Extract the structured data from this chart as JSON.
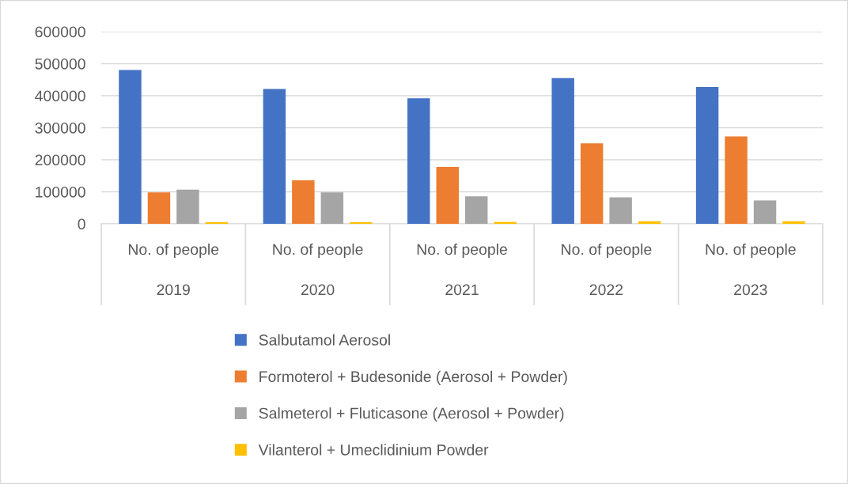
{
  "chart_data": {
    "type": "bar",
    "categories": [
      "No. of people\n2019",
      "No. of people\n2020",
      "No. of people\n2021",
      "No. of people\n2022",
      "No. of people\n2023"
    ],
    "series": [
      {
        "name": "Salbutamol Aerosol",
        "color": "#4472c4",
        "values": [
          480000,
          421000,
          392000,
          455000,
          427000
        ]
      },
      {
        "name": "Formoterol + Budesonide (Aerosol + Powder)",
        "color": "#ed7d31",
        "values": [
          98000,
          136000,
          178000,
          251000,
          273000
        ]
      },
      {
        "name": "Salmeterol + Fluticasone (Aerosol + Powder)",
        "color": "#a5a5a5",
        "values": [
          107000,
          98000,
          86000,
          83000,
          73000
        ]
      },
      {
        "name": "Vilanterol + Umeclidinium Powder",
        "color": "#ffc000",
        "values": [
          5000,
          5000,
          6000,
          8000,
          8000
        ]
      }
    ],
    "ylim": [
      0,
      600000
    ],
    "yticks": [
      0,
      100000,
      200000,
      300000,
      400000,
      500000,
      600000
    ],
    "grid": "y",
    "legend": "bottom"
  }
}
